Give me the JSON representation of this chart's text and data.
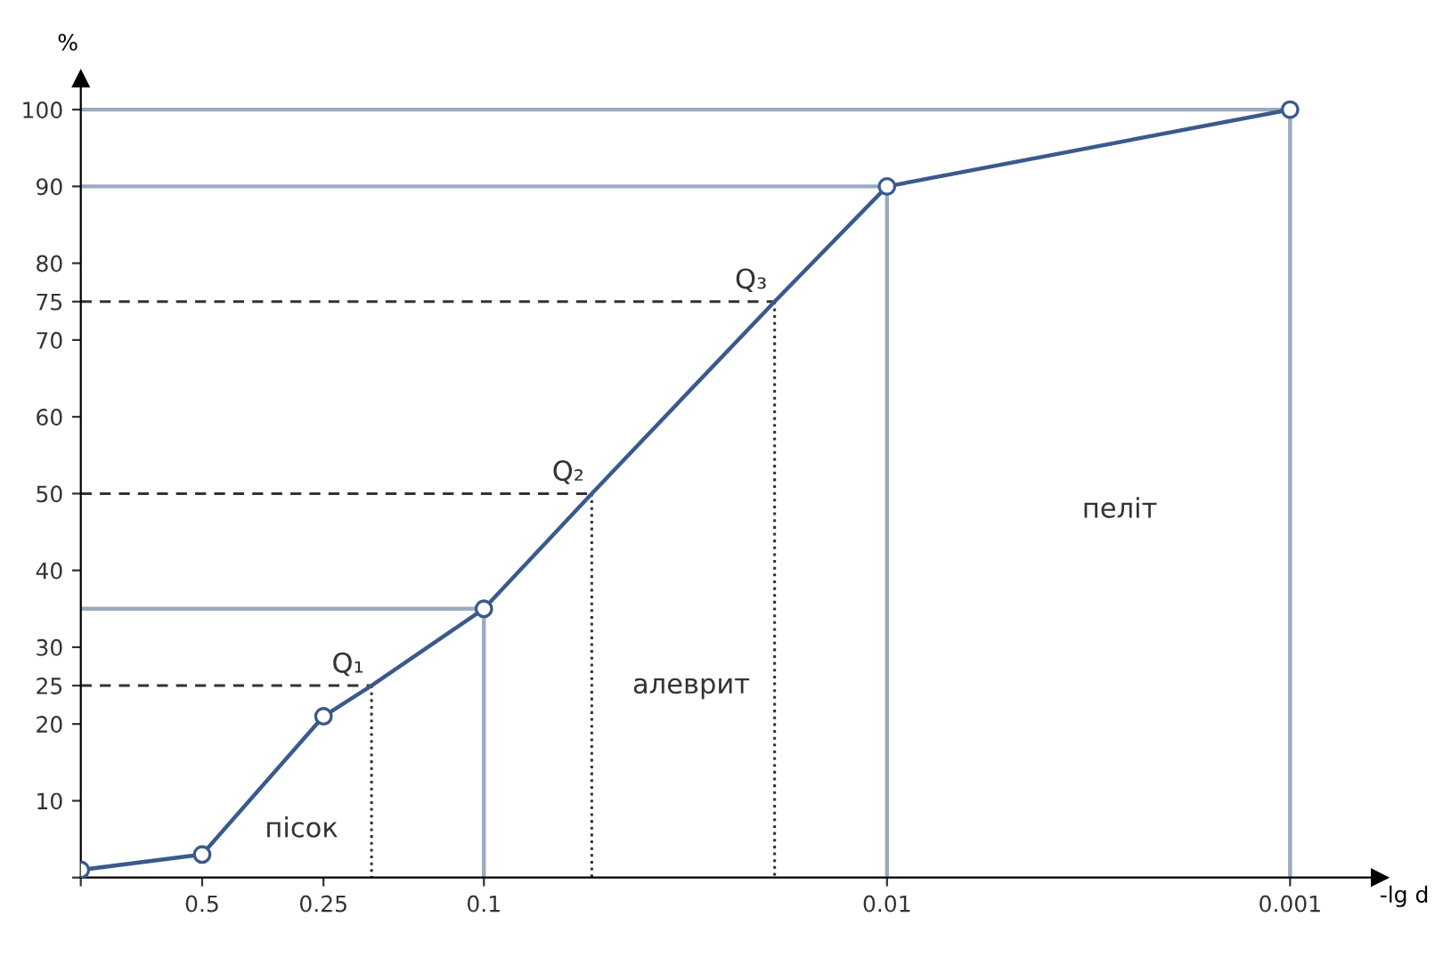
{
  "chart_data": {
    "type": "line",
    "xlabel": "-lg d",
    "ylabel": "%",
    "log": "x",
    "xlim": [
      1,
      0.0006
    ],
    "xticks": [
      {
        "value": 1,
        "label": null
      },
      0.5,
      0.25,
      0.1,
      0.01,
      0.001
    ],
    "ylim": [
      0,
      104
    ],
    "yticks": [
      {
        "value": 0,
        "label": null
      },
      10,
      20,
      25,
      30,
      40,
      50,
      60,
      70,
      75,
      80,
      90,
      100
    ],
    "grid": false,
    "series": [
      {
        "type": "line",
        "color": "#9aabc0",
        "line_style": "solid",
        "x": [
          1,
          0.001,
          0.001
        ],
        "values": [
          100,
          100,
          0
        ]
      },
      {
        "type": "line",
        "color": "#9aabc0",
        "line_style": "solid",
        "x": [
          1,
          0.01,
          0.01
        ],
        "values": [
          90,
          90,
          0
        ]
      },
      {
        "type": "line",
        "color": "#9aabc0",
        "line_style": "solid",
        "x": [
          1,
          0.1,
          0.1
        ],
        "values": [
          35,
          35,
          0
        ]
      },
      {
        "type": "line",
        "color": "#333333",
        "line_style": "dashed",
        "x": [
          1,
          0.019
        ],
        "values": [
          75,
          75
        ]
      },
      {
        "type": "line",
        "color": "#333333",
        "line_style": "dotted",
        "x": [
          0.019,
          0.019
        ],
        "values": [
          75,
          0
        ]
      },
      {
        "type": "line",
        "color": "#333333",
        "line_style": "dashed",
        "x": [
          1,
          0.054
        ],
        "values": [
          50,
          50
        ]
      },
      {
        "type": "line",
        "color": "#333333",
        "line_style": "dotted",
        "x": [
          0.054,
          0.054
        ],
        "values": [
          50,
          0
        ]
      },
      {
        "type": "line",
        "color": "#333333",
        "line_style": "dashed",
        "x": [
          1,
          0.19
        ],
        "values": [
          25,
          25
        ]
      },
      {
        "type": "line",
        "color": "#333333",
        "line_style": "dotted",
        "x": [
          0.19,
          0.19
        ],
        "values": [
          25,
          0
        ]
      },
      {
        "type": "line",
        "color": "#3a5a8c",
        "line_style": "solid",
        "x": [
          1,
          0.5,
          0.25,
          0.19,
          0.1,
          0.054,
          0.019,
          0.01,
          0.001
        ],
        "values": [
          1,
          3,
          21,
          25,
          35,
          50,
          75,
          90,
          100
        ]
      },
      {
        "type": "scatter",
        "color": "#3a5a8c",
        "marker": "circle",
        "x": [
          1,
          0.5,
          0.25,
          0.1,
          0.01,
          0.001
        ],
        "values": [
          1,
          3,
          21,
          35,
          90,
          100
        ]
      }
    ],
    "annotations": [
      {
        "text": "Q₁",
        "x": 0.19,
        "y": 25
      },
      {
        "text": "Q₂",
        "x": 0.054,
        "y": 50
      },
      {
        "text": "Q₃",
        "x": 0.019,
        "y": 75
      },
      "пісок",
      "алеврит",
      "пеліт"
    ]
  }
}
